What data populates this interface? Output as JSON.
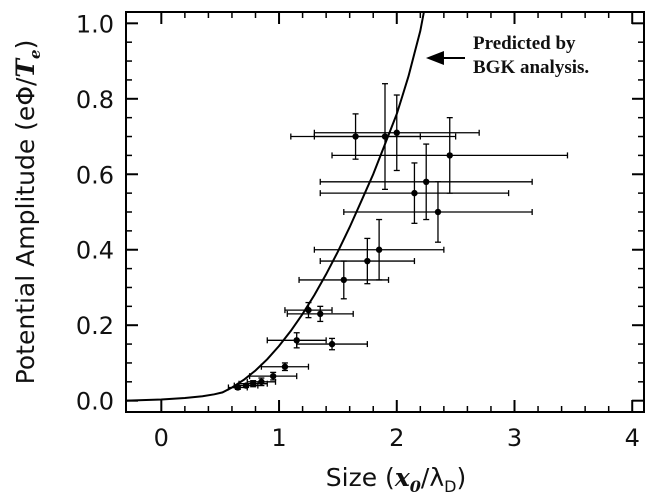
{
  "chart_data": {
    "type": "scatter",
    "xlabel": {
      "prefix": "Size (",
      "var": "x",
      "sub": "0",
      "slash": "/",
      "lambda": "λ",
      "lambda_sub": "D",
      "suffix": ")"
    },
    "ylabel": {
      "prefix": "Potential Amplitude (",
      "numer": "eΦ/",
      "var": "T",
      "sub": "e",
      "suffix": ")"
    },
    "xlim": [
      -0.3,
      4.1
    ],
    "ylim": [
      -0.03,
      1.03
    ],
    "x_ticks": [
      "0",
      "1",
      "2",
      "3",
      "4"
    ],
    "y_ticks": [
      "0.0",
      "0.2",
      "0.4",
      "0.6",
      "0.8",
      "1.0"
    ],
    "grid": false,
    "annotation": {
      "lines": [
        "Predicted by",
        "BGK analysis."
      ],
      "arrow_to": [
        2.18,
        0.98
      ]
    },
    "theory_curve": {
      "name": "BGK prediction",
      "x": [
        -0.3,
        0.0,
        0.2,
        0.35,
        0.45,
        0.52,
        0.6,
        0.7,
        0.8,
        0.9,
        1.0,
        1.1,
        1.2,
        1.3,
        1.4,
        1.5,
        1.6,
        1.7,
        1.8,
        1.9,
        2.0,
        2.05,
        2.1,
        2.15,
        2.2,
        2.23
      ],
      "y": [
        0.0,
        0.003,
        0.007,
        0.012,
        0.017,
        0.022,
        0.035,
        0.055,
        0.08,
        0.11,
        0.145,
        0.185,
        0.23,
        0.28,
        0.335,
        0.395,
        0.46,
        0.53,
        0.6,
        0.68,
        0.76,
        0.81,
        0.86,
        0.92,
        0.98,
        1.03
      ]
    },
    "measurements": {
      "x": [
        0.65,
        0.72,
        0.78,
        0.85,
        0.95,
        1.05,
        1.15,
        1.25,
        1.35,
        1.45,
        1.55,
        1.75,
        1.85,
        2.15,
        2.25,
        2.35,
        2.45,
        1.65,
        1.9,
        2.0
      ],
      "y": [
        0.035,
        0.04,
        0.045,
        0.05,
        0.065,
        0.09,
        0.16,
        0.24,
        0.23,
        0.15,
        0.32,
        0.37,
        0.4,
        0.55,
        0.58,
        0.5,
        0.65,
        0.7,
        0.7,
        0.71
      ],
      "x_err": [
        0.08,
        0.1,
        0.12,
        0.12,
        0.2,
        0.2,
        0.25,
        0.2,
        0.28,
        0.3,
        0.38,
        0.4,
        0.55,
        0.8,
        0.9,
        0.8,
        1.0,
        0.55,
        0.6,
        0.7
      ],
      "y_err": [
        0.005,
        0.005,
        0.008,
        0.01,
        0.01,
        0.01,
        0.02,
        0.02,
        0.02,
        0.015,
        0.05,
        0.06,
        0.08,
        0.08,
        0.1,
        0.08,
        0.1,
        0.06,
        0.14,
        0.1
      ]
    }
  }
}
